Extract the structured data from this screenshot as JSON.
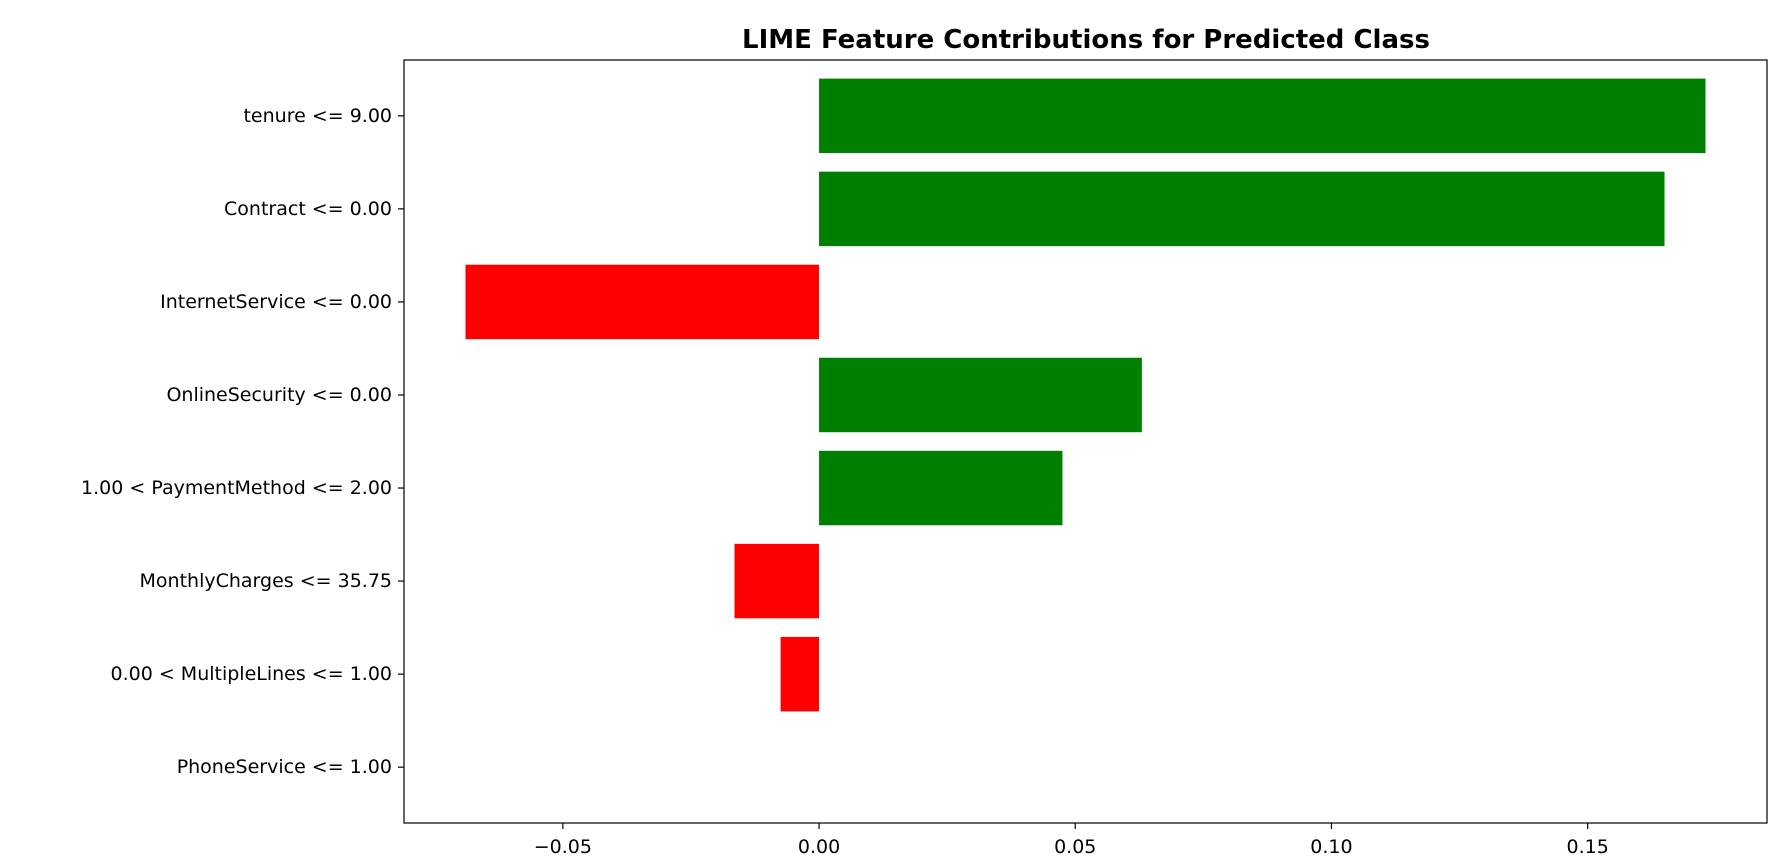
{
  "chart_data": {
    "type": "bar",
    "orientation": "horizontal",
    "title": "LIME Feature Contributions for Predicted Class",
    "xlabel": "",
    "ylabel": "",
    "categories": [
      "tenure <= 9.00",
      "Contract <= 0.00",
      "InternetService <= 0.00",
      "OnlineSecurity <= 0.00",
      "1.00 < PaymentMethod <= 2.00",
      "MonthlyCharges <= 35.75",
      "0.00 < MultipleLines <= 1.00",
      "PhoneService <= 1.00"
    ],
    "values": [
      0.173,
      0.165,
      -0.069,
      0.063,
      0.0475,
      -0.0165,
      -0.0075,
      0.0
    ],
    "xlim": [
      -0.081,
      0.185
    ],
    "xticks": [
      -0.05,
      0.0,
      0.05,
      0.1,
      0.15
    ],
    "xtick_labels": [
      "−0.05",
      "0.00",
      "0.05",
      "0.10",
      "0.15"
    ],
    "grid": false,
    "legend": "none",
    "colors": {
      "positive": "#008000",
      "negative": "#ff0000",
      "axis": "#000000"
    }
  }
}
